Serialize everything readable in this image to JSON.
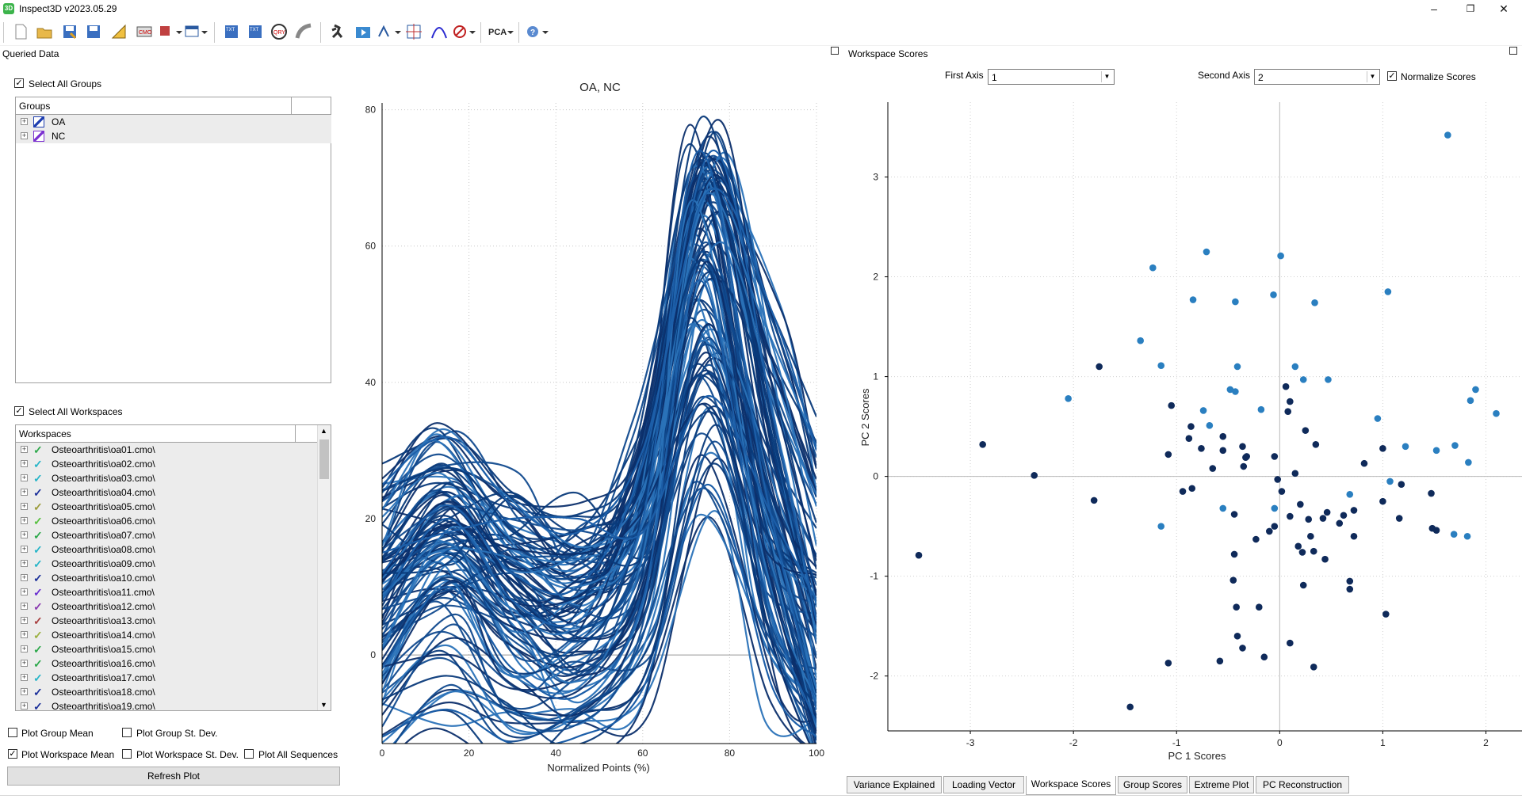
{
  "window": {
    "title": "Inspect3D v2023.05.29",
    "icon": "app-icon"
  },
  "left_panel": {
    "title": "Queried Data",
    "select_all_groups": {
      "label": "Select All Groups",
      "checked": true
    },
    "groups_header": "Groups",
    "groups": [
      {
        "label": "OA",
        "color": "#1f3fb0"
      },
      {
        "label": "NC",
        "color": "#7b2fd0"
      }
    ],
    "select_all_workspaces": {
      "label": "Select All Workspaces",
      "checked": true
    },
    "workspaces_header": "Workspaces",
    "workspaces": [
      {
        "label": "Osteoarthritis\\oa01.cmo\\",
        "color": "#2ca84a"
      },
      {
        "label": "Osteoarthritis\\oa02.cmo\\",
        "color": "#27b5c8"
      },
      {
        "label": "Osteoarthritis\\oa03.cmo\\",
        "color": "#27b5c8"
      },
      {
        "label": "Osteoarthritis\\oa04.cmo\\",
        "color": "#1b2f9a"
      },
      {
        "label": "Osteoarthritis\\oa05.cmo\\",
        "color": "#9b9b3a"
      },
      {
        "label": "Osteoarthritis\\oa06.cmo\\",
        "color": "#58c040"
      },
      {
        "label": "Osteoarthritis\\oa07.cmo\\",
        "color": "#2ca84a"
      },
      {
        "label": "Osteoarthritis\\oa08.cmo\\",
        "color": "#27b5c8"
      },
      {
        "label": "Osteoarthritis\\oa09.cmo\\",
        "color": "#27b5c8"
      },
      {
        "label": "Osteoarthritis\\oa10.cmo\\",
        "color": "#1b2f9a"
      },
      {
        "label": "Osteoarthritis\\oa11.cmo\\",
        "color": "#6a2fd0"
      },
      {
        "label": "Osteoarthritis\\oa12.cmo\\",
        "color": "#8a3ab0"
      },
      {
        "label": "Osteoarthritis\\oa13.cmo\\",
        "color": "#a84040"
      },
      {
        "label": "Osteoarthritis\\oa14.cmo\\",
        "color": "#9bb040"
      },
      {
        "label": "Osteoarthritis\\oa15.cmo\\",
        "color": "#2ca84a"
      },
      {
        "label": "Osteoarthritis\\oa16.cmo\\",
        "color": "#2ca84a"
      },
      {
        "label": "Osteoarthritis\\oa17.cmo\\",
        "color": "#27b5c8"
      },
      {
        "label": "Osteoarthritis\\oa18.cmo\\",
        "color": "#1b2f9a"
      },
      {
        "label": "Osteoarthritis\\oa19.cmo\\",
        "color": "#1b2f9a"
      }
    ],
    "options": {
      "plot_group_mean": "Plot Group Mean",
      "plot_group_std": "Plot Group St. Dev.",
      "plot_workspace_mean": "Plot Workspace Mean",
      "plot_workspace_std": "Plot Workspace St. Dev.",
      "plot_all_sequences": "Plot All Sequences"
    },
    "refresh_button": "Refresh Plot"
  },
  "curve_chart": {
    "title": "OA, NC",
    "xlabel": "Normalized Points (%)",
    "x_ticks": [
      "0",
      "20",
      "40",
      "60",
      "80",
      "100"
    ],
    "y_ticks": [
      "0",
      "20",
      "40",
      "60",
      "80"
    ],
    "colors": [
      "#0c2f6b",
      "#114a8e",
      "#2a72b8",
      "#0a3a7a"
    ]
  },
  "right_panel": {
    "title": "Workspace Scores",
    "first_axis_label": "First Axis",
    "first_axis_value": "1",
    "second_axis_label": "Second Axis",
    "second_axis_value": "2",
    "normalize_label": "Normalize Scores",
    "normalize_checked": true,
    "tabs": [
      "Variance Explained",
      "Loading Vector",
      "Workspace Scores",
      "Group Scores",
      "Extreme Plot",
      "PC Reconstruction"
    ],
    "active_tab": "Workspace Scores"
  },
  "chart_data": [
    {
      "type": "line",
      "title": "OA, NC",
      "xlabel": "Normalized Points (%)",
      "ylabel": "",
      "xlim": [
        0,
        100
      ],
      "ylim": [
        -13,
        81
      ],
      "grid": true,
      "series": [
        {
          "values": [
            [
              0,
              25
            ],
            [
              15,
              32
            ],
            [
              30,
              22
            ],
            [
              45,
              18
            ],
            [
              60,
              30
            ],
            [
              75,
              68
            ],
            [
              90,
              50
            ],
            [
              100,
              30
            ]
          ]
        },
        {
          "values": [
            [
              0,
              -12
            ],
            [
              15,
              -8
            ],
            [
              30,
              -13
            ],
            [
              45,
              -12
            ],
            [
              60,
              -5
            ],
            [
              75,
              25
            ],
            [
              90,
              -5
            ],
            [
              100,
              -12
            ]
          ]
        },
        {
          "values": [
            [
              0,
              8
            ],
            [
              15,
              20
            ],
            [
              30,
              8
            ],
            [
              45,
              5
            ],
            [
              60,
              20
            ],
            [
              73,
              74
            ],
            [
              88,
              25
            ],
            [
              100,
              -8
            ]
          ]
        },
        {
          "values": [
            [
              0,
              12
            ],
            [
              15,
              22
            ],
            [
              30,
              12
            ],
            [
              45,
              10
            ],
            [
              60,
              28
            ],
            [
              76,
              74
            ],
            [
              90,
              35
            ],
            [
              100,
              5
            ]
          ]
        },
        {
          "values": [
            [
              0,
              -2
            ],
            [
              15,
              10
            ],
            [
              30,
              -2
            ],
            [
              45,
              -6
            ],
            [
              60,
              8
            ],
            [
              73,
              55
            ],
            [
              88,
              10
            ],
            [
              100,
              -10
            ]
          ]
        },
        {
          "values": [
            [
              0,
              15
            ],
            [
              15,
              18
            ],
            [
              30,
              20
            ],
            [
              45,
              20
            ],
            [
              60,
              18
            ],
            [
              75,
              38
            ],
            [
              90,
              20
            ],
            [
              100,
              8
            ]
          ]
        }
      ]
    },
    {
      "type": "scatter",
      "title": "",
      "xlabel": "PC 1 Scores",
      "ylabel": "PC 2 Scores",
      "xlim": [
        -3.8,
        2.35
      ],
      "ylim": [
        -2.55,
        3.75
      ],
      "x_ticks": [
        "-3",
        "-2",
        "-1",
        "0",
        "1",
        "2"
      ],
      "y_ticks": [
        "-2",
        "-1",
        "0",
        "1",
        "2",
        "3"
      ],
      "grid": true,
      "series": [
        {
          "color": "#2a7fc0",
          "points": [
            [
              1.63,
              3.42
            ],
            [
              0.01,
              2.21
            ],
            [
              -0.71,
              2.25
            ],
            [
              -1.23,
              2.09
            ],
            [
              -0.06,
              1.82
            ],
            [
              1.05,
              1.85
            ],
            [
              -0.84,
              1.77
            ],
            [
              -0.43,
              1.75
            ],
            [
              0.34,
              1.74
            ],
            [
              -1.35,
              1.36
            ],
            [
              -1.15,
              1.11
            ],
            [
              -0.41,
              1.1
            ],
            [
              0.15,
              1.1
            ],
            [
              0.23,
              0.97
            ],
            [
              0.47,
              0.97
            ],
            [
              -2.05,
              0.78
            ],
            [
              -0.48,
              0.87
            ],
            [
              -0.43,
              0.85
            ],
            [
              -0.74,
              0.66
            ],
            [
              -0.68,
              0.51
            ],
            [
              -0.18,
              0.67
            ],
            [
              0.95,
              0.58
            ],
            [
              1.85,
              0.76
            ],
            [
              1.9,
              0.87
            ],
            [
              2.1,
              0.63
            ],
            [
              1.22,
              0.3
            ],
            [
              1.52,
              0.26
            ],
            [
              1.7,
              0.31
            ],
            [
              1.83,
              0.14
            ],
            [
              1.07,
              -0.05
            ],
            [
              0.68,
              -0.18
            ],
            [
              -0.55,
              -0.32
            ],
            [
              -0.05,
              -0.32
            ],
            [
              -1.15,
              -0.5
            ],
            [
              1.69,
              -0.58
            ],
            [
              1.82,
              -0.6
            ]
          ]
        },
        {
          "color": "#0f2a5a",
          "points": [
            [
              -3.5,
              -0.79
            ],
            [
              -2.88,
              0.32
            ],
            [
              -2.38,
              0.01
            ],
            [
              -1.75,
              1.1
            ],
            [
              -1.8,
              -0.24
            ],
            [
              -1.45,
              -2.31
            ],
            [
              -1.08,
              -1.87
            ],
            [
              -1.05,
              0.71
            ],
            [
              -1.08,
              0.22
            ],
            [
              -0.94,
              -0.15
            ],
            [
              -0.88,
              0.38
            ],
            [
              -0.86,
              0.5
            ],
            [
              -0.76,
              0.28
            ],
            [
              -0.55,
              0.4
            ],
            [
              -0.55,
              0.26
            ],
            [
              -0.44,
              -0.38
            ],
            [
              -0.44,
              -0.78
            ],
            [
              -0.45,
              -1.04
            ],
            [
              -0.42,
              -1.31
            ],
            [
              -0.41,
              -1.6
            ],
            [
              -0.36,
              -1.72
            ],
            [
              -0.58,
              -1.85
            ],
            [
              -0.36,
              0.3
            ],
            [
              -0.33,
              0.19
            ],
            [
              -0.32,
              0.2
            ],
            [
              -0.35,
              0.1
            ],
            [
              -0.2,
              -1.31
            ],
            [
              -0.15,
              -1.81
            ],
            [
              -0.23,
              -0.63
            ],
            [
              -0.1,
              -0.55
            ],
            [
              -0.05,
              -0.5
            ],
            [
              -0.02,
              -0.03
            ],
            [
              -0.05,
              0.2
            ],
            [
              0.06,
              0.9
            ],
            [
              0.1,
              0.75
            ],
            [
              0.08,
              0.65
            ],
            [
              0.1,
              -0.4
            ],
            [
              0.1,
              -1.67
            ],
            [
              0.15,
              0.03
            ],
            [
              0.2,
              -0.28
            ],
            [
              0.18,
              -0.7
            ],
            [
              0.22,
              -0.76
            ],
            [
              0.23,
              -1.09
            ],
            [
              0.25,
              0.46
            ],
            [
              0.28,
              -0.43
            ],
            [
              0.3,
              -0.6
            ],
            [
              0.33,
              -1.91
            ],
            [
              0.35,
              0.32
            ],
            [
              0.33,
              -0.75
            ],
            [
              0.42,
              -0.42
            ],
            [
              0.44,
              -0.83
            ],
            [
              0.46,
              -0.36
            ],
            [
              0.58,
              -0.47
            ],
            [
              0.62,
              -0.39
            ],
            [
              0.68,
              -1.05
            ],
            [
              0.68,
              -1.13
            ],
            [
              0.72,
              -0.34
            ],
            [
              0.72,
              -0.6
            ],
            [
              0.82,
              0.13
            ],
            [
              1.0,
              0.28
            ],
            [
              1.0,
              -0.25
            ],
            [
              1.03,
              -1.38
            ],
            [
              1.18,
              -0.08
            ],
            [
              1.16,
              -0.42
            ],
            [
              1.47,
              -0.17
            ],
            [
              1.48,
              -0.52
            ],
            [
              1.52,
              -0.54
            ],
            [
              -0.65,
              0.08
            ],
            [
              -0.85,
              -0.12
            ],
            [
              0.02,
              -0.15
            ]
          ]
        }
      ]
    }
  ]
}
